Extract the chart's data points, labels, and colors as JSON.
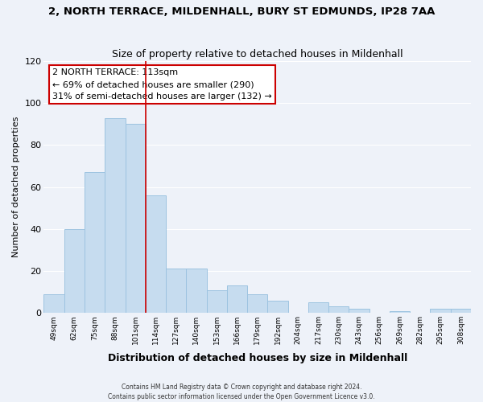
{
  "title": "2, NORTH TERRACE, MILDENHALL, BURY ST EDMUNDS, IP28 7AA",
  "subtitle": "Size of property relative to detached houses in Mildenhall",
  "xlabel": "Distribution of detached houses by size in Mildenhall",
  "ylabel": "Number of detached properties",
  "bar_color": "#c6dcef",
  "bar_edge_color": "#9dc3e0",
  "background_color": "#eef2f9",
  "grid_color": "#ffffff",
  "categories": [
    "49sqm",
    "62sqm",
    "75sqm",
    "88sqm",
    "101sqm",
    "114sqm",
    "127sqm",
    "140sqm",
    "153sqm",
    "166sqm",
    "179sqm",
    "192sqm",
    "204sqm",
    "217sqm",
    "230sqm",
    "243sqm",
    "256sqm",
    "269sqm",
    "282sqm",
    "295sqm",
    "308sqm"
  ],
  "values": [
    9,
    40,
    67,
    93,
    90,
    56,
    21,
    21,
    11,
    13,
    9,
    6,
    0,
    5,
    3,
    2,
    0,
    1,
    0,
    2,
    2
  ],
  "vline_color": "#cc0000",
  "vline_index": 4.5,
  "annotation_title": "2 NORTH TERRACE: 113sqm",
  "annotation_line1": "← 69% of detached houses are smaller (290)",
  "annotation_line2": "31% of semi-detached houses are larger (132) →",
  "annotation_box_color": "white",
  "annotation_box_edge": "#cc0000",
  "ylim": [
    0,
    120
  ],
  "yticks": [
    0,
    20,
    40,
    60,
    80,
    100,
    120
  ],
  "footer_line1": "Contains HM Land Registry data © Crown copyright and database right 2024.",
  "footer_line2": "Contains public sector information licensed under the Open Government Licence v3.0."
}
